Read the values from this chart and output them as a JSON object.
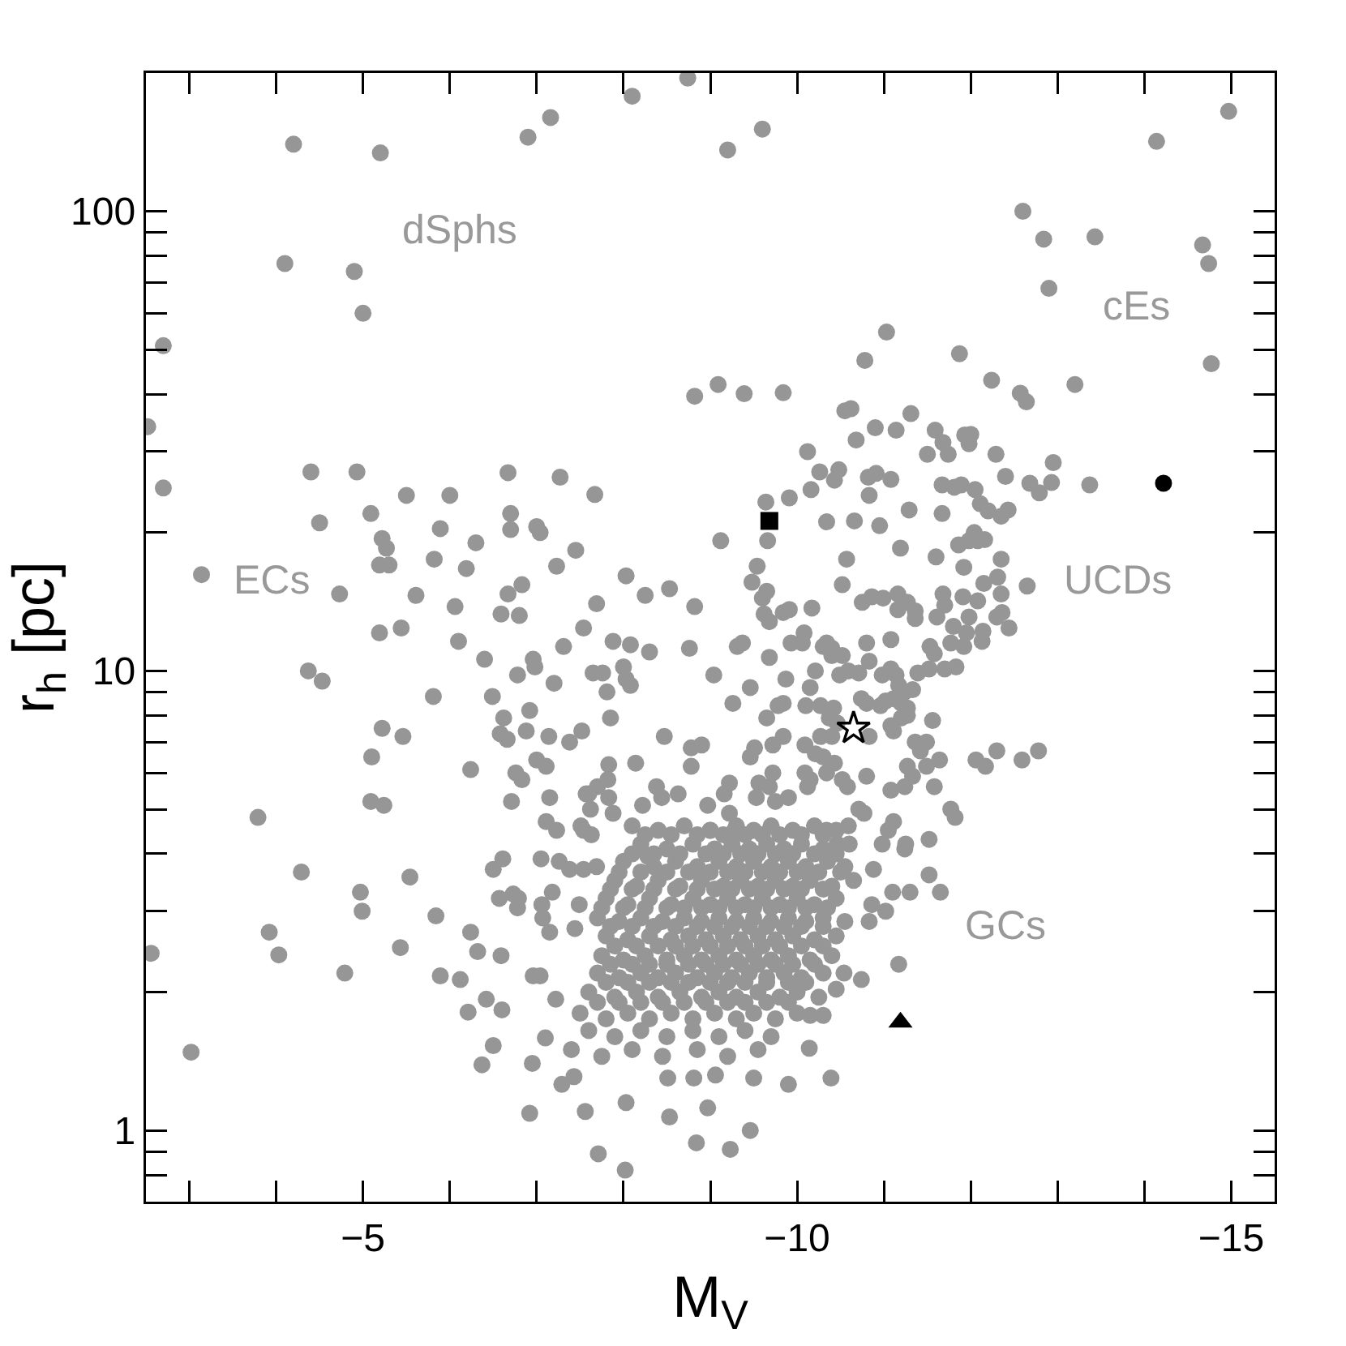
{
  "chart_data": {
    "type": "scatter",
    "xlabel": "M$_{V}$",
    "ylabel": "r$_{h}$ [pc]",
    "log": "y",
    "marker": "circle",
    "xlim": [
      -2.5,
      -15.5
    ],
    "xticks": [
      {
        "value": -3,
        "label": null
      },
      {
        "value": -4,
        "label": null
      },
      -5,
      {
        "value": -6,
        "label": null
      },
      {
        "value": -7,
        "label": null
      },
      {
        "value": -8,
        "label": null
      },
      {
        "value": -9,
        "label": null
      },
      -10,
      {
        "value": -11,
        "label": null
      },
      {
        "value": -12,
        "label": null
      },
      {
        "value": -13,
        "label": null
      },
      {
        "value": -14,
        "label": null
      },
      -15
    ],
    "ylim": [
      0.7,
      200
    ],
    "yticks": [
      {
        "value": 0.8,
        "label": null
      },
      {
        "value": 0.9,
        "label": null
      },
      1,
      {
        "value": 2,
        "label": null
      },
      {
        "value": 3,
        "label": null
      },
      {
        "value": 4,
        "label": null
      },
      {
        "value": 5,
        "label": null
      },
      {
        "value": 6,
        "label": null
      },
      {
        "value": 7,
        "label": null
      },
      {
        "value": 8,
        "label": null
      },
      {
        "value": 9,
        "label": null
      },
      10,
      {
        "value": 20,
        "label": null
      },
      {
        "value": 30,
        "label": null
      },
      {
        "value": 40,
        "label": null
      },
      {
        "value": 50,
        "label": null
      },
      {
        "value": 60,
        "label": null
      },
      {
        "value": 70,
        "label": null
      },
      {
        "value": 80,
        "label": null
      },
      {
        "value": 90,
        "label": null
      },
      100
    ],
    "annotations": [
      "dSphs",
      "cEs",
      "ECs",
      "UCDs",
      "GCs"
    ],
    "series": [
      {
        "color": "#969696",
        "x": [
          -4.2,
          -5.2,
          -6.9,
          -7.16,
          -8.1,
          -8.74,
          -4.1,
          -4.9,
          -5.0,
          -2.7,
          -2.52,
          -2.7,
          -8.82,
          -9.09,
          -4.4,
          -4.93,
          -6.67,
          -7.27,
          -7.67,
          -5.5,
          -6.0,
          -4.5,
          -5.09,
          -6.7,
          -5.89,
          -6.7,
          -7.0,
          -7.04,
          -9.6,
          -9.2,
          -14.14,
          -14.97,
          -12.6,
          -12.84,
          -13.43,
          -14.67,
          -14.74,
          -12.9,
          -14.77,
          -11.03,
          -10.78,
          -11.87,
          -12.24,
          -13.2,
          -12.57,
          -12.64,
          -9.39,
          -9.84,
          -10.55,
          -10.62,
          -11.31,
          -10.9,
          -11.14,
          -11.59,
          -11.93,
          -12.0,
          -11.68,
          -11.74,
          -11.5,
          -11.98,
          -12.29,
          -10.68,
          -10.12,
          -12.95,
          -10.26,
          -10.48,
          -10.43,
          -10.82,
          -10.91,
          -11.08,
          -10.16,
          -9.91,
          -10.83,
          -9.64,
          -11.67,
          -11.89,
          -11.81,
          -12.05,
          -12.4,
          -12.68,
          -12.79,
          -12.93,
          -13.37,
          -11.29,
          -11.67,
          -12.11,
          -12.2,
          -12.43,
          -12.35,
          -10.34,
          -10.66,
          -10.95,
          -12.04,
          -3.14,
          -5.22,
          -5.27,
          -5.19,
          -5.3,
          -4.73,
          -5.61,
          -5.82,
          -6.3,
          -6.19,
          -6.06,
          -6.67,
          -6.83,
          -6.59,
          -6.8,
          -7.23,
          -7.45,
          -7.69,
          -7.54,
          -7.31,
          -7.88,
          -6.1,
          -5.19,
          -5.44,
          -6.4,
          -6.96,
          -6.98,
          -6.78,
          -7.2,
          -7.65,
          -7.76,
          -7.81,
          -7.85,
          -4.37,
          -4.53,
          -5.81,
          -6.49,
          -6.62,
          -6.58,
          -6.66,
          -6.92,
          -6.88,
          -7.14,
          -7.38,
          -7.52,
          -5.22,
          -5.46,
          -5.1,
          -6.24,
          -6.76,
          -6.83,
          -7.0,
          -7.11,
          -7.83,
          -5.09,
          -5.24,
          -3.79,
          -6.71,
          -7.15,
          -7.7,
          -7.57,
          -7.62,
          -7.83,
          -7.88,
          -7.11,
          -7.23,
          -7.54,
          -7.63,
          -4.29,
          -5.54,
          -4.97,
          -4.99,
          -5.84,
          -3.92,
          -6.24,
          -6.5,
          -6.61,
          -7.05,
          -6.57,
          -6.79,
          -7.06,
          -7.18,
          -7.26,
          -7.38,
          -7.54,
          -7.69,
          -7.49,
          -7.15,
          -7.44,
          -9.12,
          -9.66,
          -9.54,
          -9.48,
          -9.65,
          -9.6,
          -9.62,
          -9.68,
          -9.84,
          -9.91,
          -10.17,
          -10.57,
          -10.52,
          -11.19,
          -11.6,
          -11.92,
          -11.86,
          -11.98,
          -12.08,
          -12.16,
          -12.35,
          -12.31,
          -12.35,
          -12.15,
          -12.08,
          -11.91,
          -12.65,
          -12.36,
          -12.44,
          -12.3,
          -12.14,
          -11.98,
          -11.95,
          -11.68,
          -11.7,
          -11.61,
          -11.8,
          -11.77,
          -11.92,
          -12.13,
          -11.83,
          -11.7,
          -11.53,
          -11.58,
          -10.75,
          -10.86,
          -10.99,
          -11.16,
          -11.16,
          -11.27,
          -11.36,
          -11.36,
          -11.08,
          -9.93,
          -10.06,
          -10.08,
          -10.34,
          -10.4,
          -9.31,
          -9.37,
          -9.68,
          -9.04,
          -8.76,
          -8.82,
          -8.53,
          -8.25,
          -8.03,
          -8.08,
          -8.3,
          -8.0,
          -8.03,
          -8.08,
          -8.47,
          -9.26,
          -9.46,
          -9.65,
          -9.78,
          -9.84,
          -9.84,
          -9.72,
          -9.87,
          -10.15,
          -10.21,
          -10.1,
          -10.27,
          -10.42,
          -10.37,
          -10.49,
          -10.59,
          -10.71,
          -10.3,
          -10.4,
          -10.52,
          -10.8,
          -10.83,
          -10.98,
          -11.08,
          -11.14,
          -11.17,
          -11.02,
          -11.11,
          -11.24,
          -11.33,
          -11.2,
          -11.27,
          -11.39,
          -11.52,
          -10.74,
          -10.8,
          -10.96,
          -11.08,
          -11.11,
          -11.2,
          -11.27,
          -10.83,
          -10.46,
          -10.27,
          -10.09,
          -9.51,
          -9.46,
          -11.56,
          -11.36,
          -11.49,
          -11.42,
          -12.3,
          -12.06,
          -12.17,
          -12.59,
          -12.78,
          -11.27,
          -11.33,
          -11.49,
          -11.64,
          -11.58,
          -11.24,
          -11.08,
          -11.77,
          -11.82,
          -11.52,
          -11.24,
          -10.98,
          -11.05,
          -11.11,
          -10.8,
          -10.58,
          -10.71,
          -10.77,
          -10.4,
          -10.43,
          -10.52,
          -10.34,
          -10.3,
          -10.21,
          -10.15,
          -10.09,
          -10.12,
          -9.9,
          -9.68,
          -9.75,
          -9.56,
          -9.53,
          -9.72,
          -9.22,
          -9.16,
          -8.97,
          -8.78,
          -8.63,
          -8.44,
          -8.38,
          -8.22,
          -8.78,
          -8.9,
          -8.14,
          -7.82,
          -7.6,
          -9.22,
          -7.51,
          -8.28,
          -9.0,
          -9.28,
          -10.34,
          -10.46,
          -10.59,
          -6.32,
          -6.12,
          -5.89,
          -6.21,
          -6.42,
          -6.6,
          -6.5,
          -6.37,
          -6.59,
          -6.73,
          -6.78,
          -7.07,
          -6.96,
          -7.04,
          -7.22,
          -7.1,
          -6.95,
          -6.92,
          -7.56,
          -7.71,
          -8.02,
          -8.03,
          -8.53,
          -8.97,
          -8.84,
          -9.23,
          -9.46,
          -7.29,
          -7.43,
          -8.51,
          -8.81,
          -9.06,
          -9.5,
          -9.9,
          -10.39,
          -10.14,
          -11.17,
          -11.52,
          -11.65,
          -11.3,
          -11.1,
          -11.25,
          -10.88,
          -10.74,
          -10.54,
          -10.45,
          -10.3,
          -10.15,
          -10.83,
          -11.02,
          -10.86,
          -2.56,
          -3.02,
          -4.03,
          -4.79,
          -5.43,
          -8.1,
          -8.4,
          -8.7,
          -9.0,
          -9.3,
          -9.5,
          -9.7,
          -9.95,
          -10.2,
          -10.45,
          -8.2,
          -8.5,
          -8.8,
          -9.05,
          -9.25,
          -9.45,
          -9.65,
          -9.85,
          -10.05,
          -10.3,
          -10.6,
          -8.0,
          -8.35,
          -8.6,
          -8.85,
          -9.1,
          -9.3,
          -9.5,
          -9.7,
          -9.9,
          -10.1,
          -10.35,
          -10.55,
          -7.9,
          -8.15,
          -8.4,
          -8.65,
          -8.9,
          -9.15,
          -9.35,
          -9.55,
          -9.75,
          -9.95,
          -10.15,
          -10.4,
          -10.65,
          -7.8,
          -8.05,
          -8.3,
          -8.55,
          -8.8,
          -9.0,
          -9.2,
          -9.4,
          -9.6,
          -9.8,
          -10.0,
          -10.2,
          -10.45,
          -7.7,
          -7.95,
          -8.2,
          -8.45,
          -8.7,
          -8.9,
          -9.1,
          -9.3,
          -9.5,
          -9.7,
          -9.9,
          -10.1,
          -10.3,
          -10.55,
          -7.8,
          -8.05,
          -8.3,
          -8.55,
          -8.75,
          -8.95,
          -9.15,
          -9.35,
          -9.55,
          -9.75,
          -9.95,
          -10.2,
          -10.45,
          -7.75,
          -8.0,
          -8.25,
          -8.5,
          -8.7,
          -8.9,
          -9.1,
          -9.3,
          -9.5,
          -9.7,
          -9.9,
          -10.15,
          -10.4,
          -7.7,
          -7.95,
          -8.2,
          -8.4,
          -8.6,
          -8.85,
          -9.05,
          -9.25,
          -9.45,
          -9.65,
          -9.85,
          -10.05,
          -10.3,
          -7.6,
          -7.9,
          -8.15,
          -8.4,
          -8.65,
          -8.9,
          -9.1,
          -9.3,
          -9.55,
          -9.8,
          -10.0,
          -10.25,
          -7.5,
          -7.8,
          -8.05,
          -8.3,
          -8.55,
          -8.8,
          -9.05,
          -9.3,
          -9.5,
          -9.75,
          -10.0,
          -7.6,
          -7.9,
          -8.2,
          -8.5,
          -8.8,
          -9.1,
          -9.4,
          -9.7,
          -7.4,
          -7.75,
          -8.1,
          -8.45,
          -8.85,
          -9.2,
          -9.55,
          -8.25,
          -8.55,
          -8.85,
          -9.15,
          -9.4,
          -9.6,
          -9.8,
          -10.05,
          -10.3,
          -8.1,
          -8.35,
          -8.65,
          -8.95,
          -9.15,
          -9.35,
          -9.55,
          -9.75,
          -9.95,
          -10.2,
          -10.45,
          -7.95,
          -8.2,
          -8.5,
          -8.75,
          -9.0,
          -9.2,
          -9.4,
          -9.6,
          -9.8,
          -10.0,
          -10.25,
          -10.5,
          -7.85,
          -8.1,
          -8.35,
          -8.6,
          -8.85,
          -9.05,
          -9.25,
          -9.45,
          -9.65,
          -9.85,
          -10.05,
          -10.3,
          -7.75,
          -8.0,
          -8.25,
          -8.5,
          -8.7,
          -8.9,
          -9.1,
          -9.3,
          -9.5,
          -9.7,
          -9.9,
          -10.1,
          -10.35,
          -7.85,
          -8.1,
          -8.35,
          -8.6,
          -8.85,
          -9.05,
          -9.25,
          -9.45,
          -9.65,
          -9.85,
          -10.05,
          -10.3,
          -7.9,
          -8.15,
          -8.4,
          -8.6,
          -8.8,
          -9.0,
          -9.2,
          -9.4,
          -9.6,
          -9.8,
          -10.05,
          -10.3,
          -7.85,
          -8.1,
          -8.3,
          -8.5,
          -8.75,
          -8.95,
          -9.15,
          -9.35,
          -9.55,
          -9.75,
          -9.95,
          -10.2,
          -7.8,
          -8.05,
          -8.3,
          -8.55,
          -8.75,
          -9.0,
          -9.2,
          -9.4,
          -9.65,
          -9.9,
          -10.1,
          -7.7,
          -7.95,
          -8.2,
          -8.45,
          -8.7,
          -8.95,
          -9.2,
          -9.4,
          -9.65,
          -9.9
        ],
        "values": [
          140,
          134,
          145,
          160,
          178,
          195,
          77,
          74,
          60,
          51,
          34,
          25,
          39.6,
          42,
          27.1,
          27.1,
          27,
          26.4,
          24.2,
          24.1,
          24.1,
          21,
          22,
          22,
          20.4,
          20.3,
          20.6,
          20,
          151,
          136,
          142,
          165,
          100,
          87,
          88,
          84.5,
          77,
          68,
          46.6,
          54.6,
          47.4,
          49,
          42.9,
          42,
          40.2,
          38.5,
          40.1,
          40.3,
          36.8,
          37.2,
          36.3,
          33.8,
          33.4,
          33.4,
          32.6,
          32.7,
          31.4,
          29.6,
          29.6,
          31.2,
          29.6,
          31.8,
          30,
          28.4,
          27.1,
          27.4,
          26,
          26.4,
          26.9,
          26.1,
          24.8,
          23.8,
          24.1,
          23.3,
          25.4,
          25.4,
          25.1,
          24.8,
          26.5,
          25.6,
          24.4,
          25.7,
          25.4,
          22.4,
          22,
          23.1,
          22.3,
          22.4,
          21.7,
          21.1,
          21.2,
          20.7,
          20,
          16.2,
          19.4,
          18.5,
          17,
          17,
          14.7,
          14.6,
          17.5,
          19,
          16.7,
          13.8,
          14.7,
          15.4,
          13.3,
          13.2,
          16.9,
          18.3,
          14,
          12.4,
          11.3,
          11.6,
          11.6,
          12.1,
          12.4,
          10.6,
          10.6,
          10.2,
          9.8,
          9.4,
          9.9,
          9.9,
          9.0,
          7.9,
          10,
          9.5,
          8.8,
          8.8,
          7.9,
          7.3,
          7.1,
          8.2,
          7.4,
          7.2,
          7.0,
          7.4,
          7.5,
          7.2,
          6.5,
          6.1,
          6.0,
          5.8,
          6.4,
          6.2,
          6.25,
          5.2,
          5.1,
          4.8,
          5.2,
          5.3,
          5.6,
          5.4,
          5.0,
          5.3,
          4.9,
          4.7,
          4.5,
          4.5,
          4.4,
          3.65,
          3.56,
          3.3,
          3.0,
          2.93,
          2.7,
          2.7,
          3.7,
          3.9,
          3.9,
          3.2,
          3.2,
          3.1,
          3.3,
          3.85,
          3.7,
          3.7,
          3.75,
          3.1,
          2.7,
          2.75,
          19.2,
          19.2,
          16.9,
          15.6,
          14.9,
          14.4,
          13.3,
          12.8,
          13.4,
          13.6,
          13.7,
          17.5,
          15.4,
          18.5,
          17.7,
          16.8,
          18.8,
          19.2,
          19.2,
          19.3,
          17.5,
          16,
          14.7,
          15.5,
          14.2,
          14.5,
          15.3,
          13.4,
          12.4,
          13.1,
          12.2,
          13.1,
          12.1,
          14.7,
          13.9,
          13.1,
          12.5,
          11.5,
          11.3,
          11.6,
          10.2,
          10.1,
          11.3,
          10.9,
          14.1,
          14.5,
          14.4,
          14.7,
          13.6,
          14.1,
          13.5,
          13.0,
          11.7,
          11.5,
          11.5,
          12.1,
          11.5,
          11.2,
          11.3,
          11.5,
          10.7,
          9.8,
          11.2,
          13.8,
          15.1,
          14.6,
          16.1,
          11.4,
          11.0,
          10.2,
          9.6,
          9.3,
          7.2,
          8.5,
          9.2,
          7.9,
          8.4,
          8.5,
          7.2,
          6.9,
          9.6,
          9.2,
          10.0,
          8.4,
          8.4,
          8.3,
          7.9,
          9.8,
          10.0,
          9.9,
          11.3,
          10.8,
          10.8,
          11.5,
          10.5,
          9.8,
          10.1,
          9.8,
          9.3,
          8.6,
          8.7,
          9.0,
          9.1,
          8.5,
          8.3,
          9.9,
          10.1,
          8.7,
          8.5,
          8.4,
          7.6,
          7.4,
          7.9,
          8.0,
          7.2,
          7.7,
          7.2,
          6.9,
          6.8,
          6.5,
          7.8,
          7.0,
          7.0,
          6.7,
          6.7,
          6.4,
          6.2,
          6.4,
          6.7,
          6.2,
          5.9,
          6.2,
          6.4,
          5.6,
          5.6,
          5.5,
          5.0,
          4.8,
          4.3,
          4.1,
          4.2,
          4.5,
          4.7,
          5.9,
          5.6,
          5.0,
          4.9,
          7.2,
          6.3,
          5.8,
          6.0,
          6.5,
          6.6,
          5.8,
          6.0,
          5.6,
          5.3,
          5.6,
          5.2,
          5.7,
          5.3,
          6.0,
          5.7,
          5.4,
          5.1,
          6.2,
          5.4,
          5.3,
          5.6,
          5.1,
          6.8,
          6.9,
          6.3,
          5.8,
          5.4,
          4.9,
          4.6,
          3.95,
          4.5,
          4.5,
          4.5,
          4.2,
          4.6,
          2.45,
          2.13,
          2.17,
          1.81,
          1.93,
          1.83,
          1.53,
          1.39,
          2.4,
          3.27,
          3.05,
          2.9,
          2.17,
          2.17,
          1.93,
          1.59,
          1.4,
          1.09,
          1.1,
          0.89,
          0.82,
          1.15,
          1.07,
          1.12,
          0.94,
          0.91,
          1.0,
          1.26,
          1.31,
          1.3,
          1.3,
          1.32,
          1.3,
          1.26,
          1.3,
          1.51,
          2.3,
          3.6,
          3.3,
          3.3,
          3.3,
          4.2,
          3.7,
          2.13,
          2.2,
          2.03,
          1.78,
          1.78,
          2.85,
          3.0,
          3.1,
          2.43,
          1.48,
          2.41,
          2.2,
          2.5,
          4.6,
          4.5,
          4.6,
          4.5,
          4.6,
          4.5,
          4.6,
          4.5,
          4.6,
          4.5,
          4.2,
          4.1,
          4.2,
          4.1,
          4.2,
          4.1,
          4.2,
          4.1,
          4.2,
          4.1,
          4.2,
          3.85,
          3.75,
          3.85,
          3.75,
          3.85,
          3.75,
          3.85,
          3.75,
          3.85,
          3.75,
          3.85,
          3.75,
          3.5,
          3.4,
          3.5,
          3.4,
          3.5,
          3.4,
          3.5,
          3.4,
          3.5,
          3.4,
          3.5,
          3.4,
          3.5,
          3.2,
          3.1,
          3.2,
          3.1,
          3.2,
          3.1,
          3.2,
          3.1,
          3.2,
          3.1,
          3.2,
          3.1,
          3.2,
          2.9,
          2.85,
          2.9,
          2.85,
          2.9,
          2.85,
          2.9,
          2.85,
          2.9,
          2.85,
          2.9,
          2.85,
          2.9,
          2.85,
          2.65,
          2.6,
          2.65,
          2.6,
          2.65,
          2.6,
          2.65,
          2.6,
          2.65,
          2.6,
          2.65,
          2.6,
          2.65,
          2.4,
          2.35,
          2.4,
          2.35,
          2.4,
          2.35,
          2.4,
          2.35,
          2.4,
          2.35,
          2.4,
          2.35,
          2.4,
          2.2,
          2.15,
          2.2,
          2.15,
          2.2,
          2.15,
          2.2,
          2.15,
          2.2,
          2.15,
          2.2,
          2.15,
          2.2,
          2.0,
          1.95,
          2.0,
          1.95,
          2.0,
          1.95,
          2.0,
          1.95,
          2.0,
          1.95,
          2.0,
          1.95,
          1.8,
          1.75,
          1.8,
          1.75,
          1.8,
          1.75,
          1.8,
          1.75,
          1.8,
          1.75,
          1.8,
          1.65,
          1.6,
          1.65,
          1.6,
          1.65,
          1.6,
          1.65,
          1.6,
          1.5,
          1.45,
          1.5,
          1.45,
          1.5,
          1.45,
          1.5,
          4.4,
          4.4,
          4.4,
          4.4,
          4.4,
          4.4,
          4.4,
          4.4,
          4.4,
          4.0,
          4.0,
          4.0,
          4.0,
          4.0,
          4.0,
          4.0,
          4.0,
          4.0,
          4.0,
          4.0,
          3.65,
          3.65,
          3.65,
          3.65,
          3.65,
          3.65,
          3.65,
          3.65,
          3.65,
          3.65,
          3.65,
          3.65,
          3.35,
          3.35,
          3.35,
          3.35,
          3.35,
          3.35,
          3.35,
          3.35,
          3.35,
          3.35,
          3.35,
          3.35,
          3.05,
          3.05,
          3.05,
          3.05,
          3.05,
          3.05,
          3.05,
          3.05,
          3.05,
          3.05,
          3.05,
          3.05,
          3.05,
          2.78,
          2.78,
          2.78,
          2.78,
          2.78,
          2.78,
          2.78,
          2.78,
          2.78,
          2.78,
          2.78,
          2.78,
          2.52,
          2.52,
          2.52,
          2.52,
          2.52,
          2.52,
          2.52,
          2.52,
          2.52,
          2.52,
          2.52,
          2.52,
          2.3,
          2.3,
          2.3,
          2.3,
          2.3,
          2.3,
          2.3,
          2.3,
          2.3,
          2.3,
          2.3,
          2.3,
          2.1,
          2.1,
          2.1,
          2.1,
          2.1,
          2.1,
          2.1,
          2.1,
          2.1,
          2.1,
          2.1,
          1.9,
          1.9,
          1.9,
          1.9,
          1.9,
          1.9,
          1.9,
          1.9,
          1.9,
          1.9
        ]
      },
      {
        "color": "#000000",
        "marker": "square",
        "x": [
          -9.68
        ],
        "values": [
          21.2
        ]
      },
      {
        "color": "#000000",
        "marker": "star",
        "x": [
          -10.65
        ],
        "values": [
          7.5
        ]
      },
      {
        "color": "#000000",
        "marker": "circle",
        "x": [
          -14.22
        ],
        "values": [
          25.6
        ]
      },
      {
        "color": "#000000",
        "marker": "triangle",
        "x": [
          -11.19
        ],
        "values": [
          1.72
        ]
      }
    ]
  }
}
